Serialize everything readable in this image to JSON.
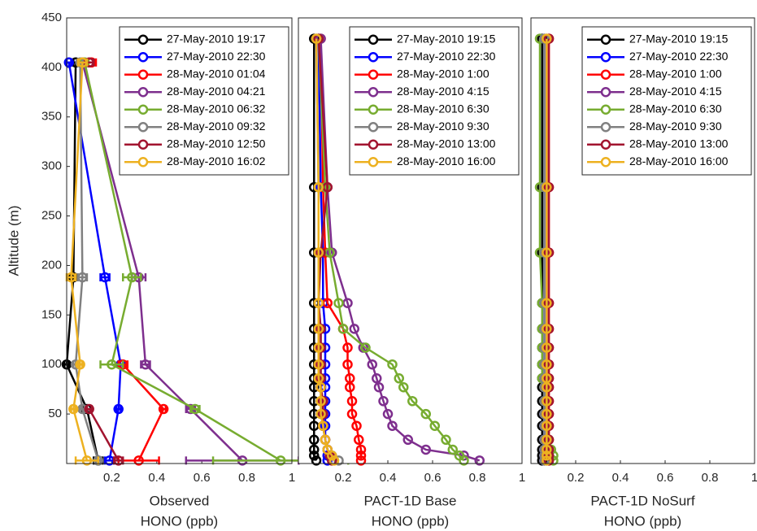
{
  "chart_data": [
    {
      "type": "line",
      "xlabel": [
        "Observed",
        "HONO (ppb)"
      ],
      "ylabel": "Altitude (m)",
      "xlim": [
        0,
        1
      ],
      "xticks": [
        0.2,
        0.4,
        0.6,
        0.8,
        1
      ],
      "ylim": [
        0,
        450
      ],
      "yticks": [
        50,
        100,
        150,
        200,
        250,
        300,
        350,
        400,
        450
      ],
      "legend": "upper right",
      "y": [
        3,
        55,
        100,
        188,
        405
      ],
      "series": [
        {
          "name": "27-May-2010 19:17",
          "color": "#000000",
          "values": [
            0.14,
            0.09,
            0.0,
            0.03,
            0.04
          ],
          "errors": [
            0.02,
            0.02,
            0.01,
            0.01,
            0.01
          ]
        },
        {
          "name": "27-May-2010 22:30",
          "color": "#0000ff",
          "values": [
            0.19,
            0.23,
            0.24,
            0.17,
            0.01
          ],
          "errors": [
            0.02,
            0.01,
            0.01,
            0.02,
            0.01
          ]
        },
        {
          "name": "28-May-2010 01:04",
          "color": "#ff0000",
          "values": [
            0.32,
            0.43,
            0.25,
            null,
            0.11
          ],
          "errors": [
            0.09,
            0.01,
            0.02,
            null,
            0.02
          ]
        },
        {
          "name": "28-May-2010 04:21",
          "color": "#7e2f8e",
          "values": [
            0.78,
            0.55,
            0.35,
            0.32,
            0.07
          ],
          "errors": [
            0.25,
            0.02,
            0.02,
            0.03,
            0.01
          ]
        },
        {
          "name": "28-May-2010 06:32",
          "color": "#77ac30",
          "values": [
            0.95,
            0.57,
            0.2,
            0.29,
            0.08
          ],
          "errors": [
            0.3,
            0.02,
            0.05,
            0.04,
            0.01
          ]
        },
        {
          "name": "28-May-2010 09:32",
          "color": "#808080",
          "values": [
            0.14,
            0.07,
            0.04,
            0.07,
            0.06
          ],
          "errors": [
            0.01,
            0.01,
            0.01,
            0.02,
            0.01
          ]
        },
        {
          "name": "28-May-2010 12:50",
          "color": "#a2142f",
          "values": [
            0.23,
            0.1,
            null,
            null,
            0.1
          ],
          "errors": [
            0.02,
            0.01,
            null,
            null,
            0.02
          ]
        },
        {
          "name": "28-May-2010 16:02",
          "color": "#edb120",
          "values": [
            0.09,
            0.03,
            0.06,
            0.02,
            0.07
          ],
          "errors": [
            0.05,
            0.01,
            0.01,
            0.02,
            0.02
          ]
        }
      ]
    },
    {
      "type": "line",
      "xlabel": [
        "PACT-1D Base",
        "HONO (ppb)"
      ],
      "xlim": [
        0,
        1
      ],
      "xticks": [
        0.2,
        0.4,
        0.6,
        0.8,
        1
      ],
      "ylim": [
        0,
        450
      ],
      "legend": "upper right",
      "y": [
        3,
        8,
        14,
        24,
        38,
        50,
        63,
        77,
        86,
        100,
        117,
        136,
        162,
        213,
        279,
        429
      ],
      "series": [
        {
          "name": "27-May-2010 19:15",
          "color": "#000000",
          "values": [
            0.08,
            0.07,
            0.07,
            0.07,
            0.07,
            0.07,
            0.07,
            0.07,
            0.07,
            0.07,
            0.07,
            0.07,
            0.07,
            0.07,
            0.07,
            0.07
          ]
        },
        {
          "name": "27-May-2010 22:30",
          "color": "#0000ff",
          "values": [
            0.13,
            0.13,
            0.13,
            0.12,
            0.12,
            0.12,
            0.12,
            0.12,
            0.12,
            0.12,
            0.12,
            0.12,
            0.11,
            0.11,
            0.1,
            0.09
          ]
        },
        {
          "name": "28-May-2010 1:00",
          "color": "#ff0000",
          "values": [
            0.28,
            0.28,
            0.28,
            0.27,
            0.26,
            0.24,
            0.24,
            0.23,
            0.23,
            0.22,
            0.22,
            0.2,
            0.13,
            0.12,
            0.11,
            0.1
          ]
        },
        {
          "name": "28-May-2010 4:15",
          "color": "#7e2f8e",
          "values": [
            0.81,
            0.74,
            0.57,
            0.49,
            0.42,
            0.4,
            0.38,
            0.36,
            0.35,
            0.33,
            0.29,
            0.25,
            0.22,
            0.15,
            0.13,
            0.1
          ]
        },
        {
          "name": "28-May-2010 6:30",
          "color": "#77ac30",
          "values": [
            0.74,
            0.72,
            0.69,
            0.66,
            0.61,
            0.57,
            0.51,
            0.47,
            0.45,
            0.42,
            0.3,
            0.2,
            0.18,
            0.14,
            0.12,
            0.09
          ]
        },
        {
          "name": "28-May-2010 9:30",
          "color": "#808080",
          "values": [
            0.18,
            0.15,
            0.13,
            0.12,
            0.11,
            0.11,
            0.1,
            0.1,
            0.1,
            0.1,
            0.1,
            0.1,
            0.09,
            0.09,
            0.09,
            0.08
          ]
        },
        {
          "name": "28-May-2010 13:00",
          "color": "#a2142f",
          "values": [
            0.15,
            0.14,
            0.13,
            0.12,
            0.11,
            0.11,
            0.11,
            0.1,
            0.1,
            0.1,
            0.1,
            0.1,
            0.09,
            0.1,
            0.13,
            0.09
          ]
        },
        {
          "name": "28-May-2010 16:00",
          "color": "#edb120",
          "values": [
            0.16,
            0.15,
            0.13,
            0.12,
            0.11,
            0.1,
            0.1,
            0.1,
            0.09,
            0.09,
            0.09,
            0.09,
            0.09,
            0.09,
            0.09,
            0.08
          ]
        }
      ]
    },
    {
      "type": "line",
      "xlabel": [
        "PACT-1D NoSurf",
        "HONO (ppb)"
      ],
      "xlim": [
        0,
        1
      ],
      "xticks": [
        0.2,
        0.4,
        0.6,
        0.8,
        1
      ],
      "ylim": [
        0,
        450
      ],
      "legend": "upper right",
      "y": [
        3,
        8,
        14,
        24,
        38,
        50,
        63,
        77,
        86,
        100,
        117,
        136,
        162,
        213,
        279,
        429
      ],
      "series": [
        {
          "name": "27-May-2010 19:15",
          "color": "#000000",
          "values": [
            0.05,
            0.05,
            0.05,
            0.05,
            0.05,
            0.05,
            0.05,
            0.05,
            0.05,
            0.05,
            0.05,
            0.05,
            0.05,
            0.05,
            0.05,
            0.05
          ]
        },
        {
          "name": "27-May-2010 22:30",
          "color": "#0000ff",
          "values": [
            0.06,
            0.06,
            0.06,
            0.06,
            0.06,
            0.06,
            0.06,
            0.06,
            0.06,
            0.06,
            0.06,
            0.06,
            0.06,
            0.06,
            0.06,
            0.06
          ]
        },
        {
          "name": "28-May-2010 1:00",
          "color": "#ff0000",
          "values": [
            0.08,
            0.08,
            0.08,
            0.08,
            0.08,
            0.08,
            0.08,
            0.08,
            0.08,
            0.08,
            0.08,
            0.08,
            0.08,
            0.08,
            0.08,
            0.08
          ]
        },
        {
          "name": "28-May-2010 4:15",
          "color": "#7e2f8e",
          "values": [
            0.07,
            0.07,
            0.07,
            0.07,
            0.07,
            0.07,
            0.07,
            0.07,
            0.07,
            0.07,
            0.07,
            0.07,
            0.07,
            0.07,
            0.07,
            0.07
          ]
        },
        {
          "name": "28-May-2010 6:30",
          "color": "#77ac30",
          "values": [
            0.1,
            0.1,
            0.09,
            0.08,
            0.07,
            0.07,
            0.06,
            0.06,
            0.05,
            0.05,
            0.05,
            0.05,
            0.05,
            0.04,
            0.04,
            0.04
          ]
        },
        {
          "name": "28-May-2010 9:30",
          "color": "#808080",
          "values": [
            0.06,
            0.06,
            0.06,
            0.06,
            0.06,
            0.06,
            0.06,
            0.06,
            0.06,
            0.06,
            0.06,
            0.06,
            0.06,
            0.06,
            0.06,
            0.06
          ]
        },
        {
          "name": "28-May-2010 13:00",
          "color": "#a2142f",
          "values": [
            0.08,
            0.08,
            0.08,
            0.08,
            0.08,
            0.08,
            0.08,
            0.08,
            0.08,
            0.08,
            0.08,
            0.08,
            0.08,
            0.08,
            0.08,
            0.08
          ]
        },
        {
          "name": "28-May-2010 16:00",
          "color": "#edb120",
          "values": [
            0.07,
            0.07,
            0.07,
            0.07,
            0.07,
            0.07,
            0.07,
            0.07,
            0.07,
            0.07,
            0.07,
            0.07,
            0.07,
            0.07,
            0.07,
            0.07
          ]
        }
      ]
    }
  ]
}
